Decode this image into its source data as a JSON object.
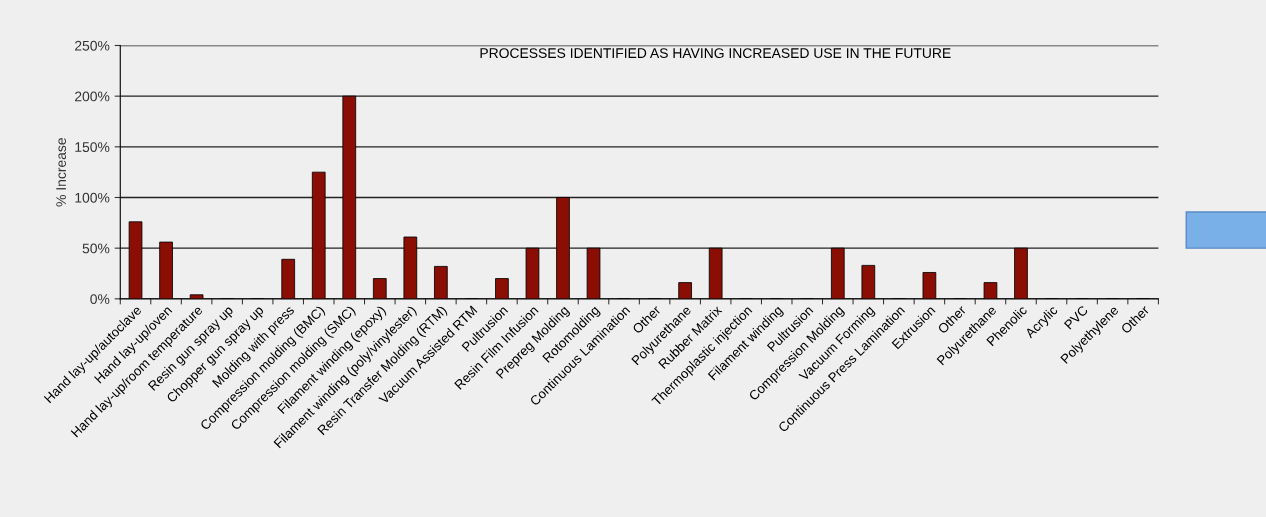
{
  "chart_data": {
    "type": "bar",
    "title": "PROCESSES IDENTIFIED AS HAVING INCREASED USE IN THE FUTURE",
    "ylabel": "% Increase",
    "categories": [
      "Hand lay-up/autoclave",
      "Hand lay-up/oven",
      "Hand lay-up/room temperature",
      "Resin gun spray up",
      "Chopper gun spray up",
      "Molding with press",
      "Compression molding (BMC)",
      "Compression molding (SMC)",
      "Filament winding (epoxy)",
      "Filament winding (poly/vinylester)",
      "Resin Transfer Molding (RTM)",
      "Vacuum Assisted RTM",
      "Pultrusion",
      "Resin Film Infusion",
      "Prepreg Molding",
      "Rotomolding",
      "Continuous Lamination",
      "Other",
      "Polyurethane",
      "Rubber Matrix",
      "Thermoplastic injection",
      "Filament winding",
      "Pultrusion",
      "Compression Molding",
      "Vacuum Forming",
      "Continuous Press Lamination",
      "Extrusion",
      "Other",
      "Polyurethane",
      "Phenolic",
      "Acrylic",
      "PVC",
      "Polyethylene",
      "Other"
    ],
    "values": [
      76,
      56,
      4,
      0,
      0,
      39,
      125,
      200,
      20,
      61,
      32,
      0,
      20,
      50,
      100,
      50,
      0,
      0,
      16,
      50,
      0,
      0,
      0,
      50,
      33,
      0,
      26,
      0,
      16,
      50,
      0,
      0,
      0,
      0
    ],
    "color": "#8b0e04",
    "ylim": [
      0,
      250
    ],
    "yticks": [
      {
        "value": 0,
        "label": "0%"
      },
      {
        "value": 50,
        "label": "50%"
      },
      {
        "value": 100,
        "label": "100%"
      },
      {
        "value": 150,
        "label": "150%"
      },
      {
        "value": 200,
        "label": "200%"
      },
      {
        "value": 250,
        "label": "250%"
      }
    ],
    "grid": "y",
    "legend": false
  }
}
